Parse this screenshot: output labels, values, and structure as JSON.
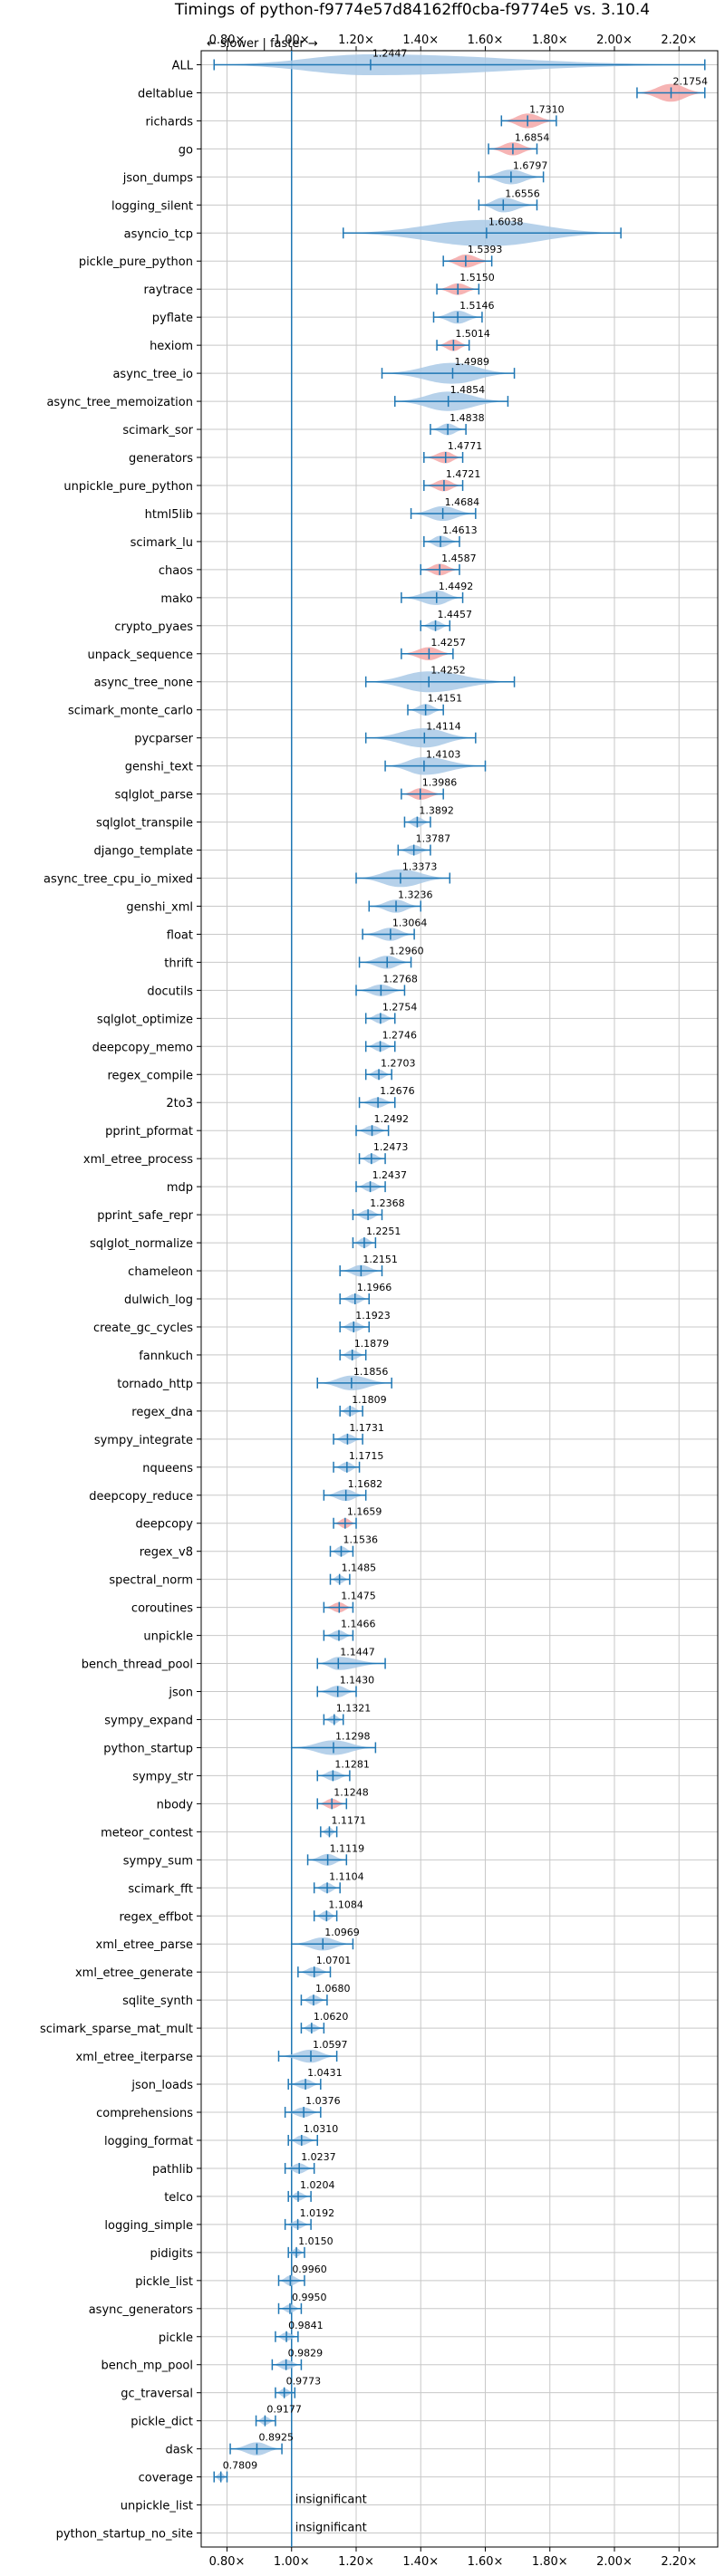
{
  "chart_data": {
    "type": "violin",
    "title": "Timings of python-f9774e57d84162ff0cba-f9774e5 vs. 3.10.4",
    "direction_hint": "← slower | faster →",
    "xlim": [
      0.72,
      2.32
    ],
    "xticks": [
      0.8,
      1.0,
      1.2,
      1.4,
      1.6,
      1.8,
      2.0,
      2.2
    ],
    "xtick_labels": [
      "0.80×",
      "1.00×",
      "1.20×",
      "1.40×",
      "1.60×",
      "1.80×",
      "2.00×",
      "2.20×"
    ],
    "reference_line": 1.0,
    "grid": true,
    "colors": {
      "normal": "#a9c9e6",
      "highlight": "#f4a7a7",
      "line": "#1f77b4",
      "grid": "#c8c8c8"
    },
    "insignificant_label": "insignificant",
    "benchmarks": [
      {
        "name": "ALL",
        "value": 1.2447,
        "label": "1.2447",
        "min": 0.76,
        "max": 2.28,
        "spread": 0.1,
        "color": "normal"
      },
      {
        "name": "deltablue",
        "value": 2.1754,
        "label": "2.1754",
        "min": 2.07,
        "max": 2.28,
        "spread": 0.08,
        "color": "highlight"
      },
      {
        "name": "richards",
        "value": 1.731,
        "label": "1.7310",
        "min": 1.65,
        "max": 1.82,
        "spread": 0.06,
        "color": "highlight"
      },
      {
        "name": "go",
        "value": 1.6854,
        "label": "1.6854",
        "min": 1.61,
        "max": 1.76,
        "spread": 0.05,
        "color": "highlight"
      },
      {
        "name": "json_dumps",
        "value": 1.6797,
        "label": "1.6797",
        "min": 1.58,
        "max": 1.78,
        "spread": 0.06,
        "color": "normal"
      },
      {
        "name": "logging_silent",
        "value": 1.6556,
        "label": "1.6556",
        "min": 1.58,
        "max": 1.76,
        "spread": 0.06,
        "color": "normal"
      },
      {
        "name": "asyncio_tcp",
        "value": 1.6038,
        "label": "1.6038",
        "min": 1.16,
        "max": 2.02,
        "spread": 0.24,
        "color": "normal"
      },
      {
        "name": "pickle_pure_python",
        "value": 1.5393,
        "label": "1.5393",
        "min": 1.47,
        "max": 1.62,
        "spread": 0.05,
        "color": "highlight"
      },
      {
        "name": "raytrace",
        "value": 1.515,
        "label": "1.5150",
        "min": 1.45,
        "max": 1.58,
        "spread": 0.04,
        "color": "highlight"
      },
      {
        "name": "pyflate",
        "value": 1.5146,
        "label": "1.5146",
        "min": 1.44,
        "max": 1.59,
        "spread": 0.05,
        "color": "normal"
      },
      {
        "name": "hexiom",
        "value": 1.5014,
        "label": "1.5014",
        "min": 1.45,
        "max": 1.55,
        "spread": 0.04,
        "color": "highlight"
      },
      {
        "name": "async_tree_io",
        "value": 1.4989,
        "label": "1.4989",
        "min": 1.28,
        "max": 1.69,
        "spread": 0.1,
        "color": "normal"
      },
      {
        "name": "async_tree_memoization",
        "value": 1.4854,
        "label": "1.4854",
        "min": 1.32,
        "max": 1.67,
        "spread": 0.09,
        "color": "normal"
      },
      {
        "name": "scimark_sor",
        "value": 1.4838,
        "label": "1.4838",
        "min": 1.43,
        "max": 1.54,
        "spread": 0.04,
        "color": "normal"
      },
      {
        "name": "generators",
        "value": 1.4771,
        "label": "1.4771",
        "min": 1.41,
        "max": 1.53,
        "spread": 0.04,
        "color": "highlight"
      },
      {
        "name": "unpickle_pure_python",
        "value": 1.4721,
        "label": "1.4721",
        "min": 1.41,
        "max": 1.53,
        "spread": 0.04,
        "color": "highlight"
      },
      {
        "name": "html5lib",
        "value": 1.4684,
        "label": "1.4684",
        "min": 1.37,
        "max": 1.57,
        "spread": 0.06,
        "color": "normal"
      },
      {
        "name": "scimark_lu",
        "value": 1.4613,
        "label": "1.4613",
        "min": 1.41,
        "max": 1.52,
        "spread": 0.04,
        "color": "normal"
      },
      {
        "name": "chaos",
        "value": 1.4587,
        "label": "1.4587",
        "min": 1.4,
        "max": 1.52,
        "spread": 0.04,
        "color": "highlight"
      },
      {
        "name": "mako",
        "value": 1.4492,
        "label": "1.4492",
        "min": 1.34,
        "max": 1.53,
        "spread": 0.06,
        "color": "normal"
      },
      {
        "name": "crypto_pyaes",
        "value": 1.4457,
        "label": "1.4457",
        "min": 1.4,
        "max": 1.49,
        "spread": 0.03,
        "color": "normal"
      },
      {
        "name": "unpack_sequence",
        "value": 1.4257,
        "label": "1.4257",
        "min": 1.34,
        "max": 1.5,
        "spread": 0.05,
        "color": "highlight"
      },
      {
        "name": "async_tree_none",
        "value": 1.4252,
        "label": "1.4252",
        "min": 1.23,
        "max": 1.69,
        "spread": 0.1,
        "color": "normal"
      },
      {
        "name": "scimark_monte_carlo",
        "value": 1.4151,
        "label": "1.4151",
        "min": 1.36,
        "max": 1.47,
        "spread": 0.04,
        "color": "normal"
      },
      {
        "name": "pycparser",
        "value": 1.4114,
        "label": "1.4114",
        "min": 1.23,
        "max": 1.57,
        "spread": 0.09,
        "color": "normal"
      },
      {
        "name": "genshi_text",
        "value": 1.4103,
        "label": "1.4103",
        "min": 1.29,
        "max": 1.6,
        "spread": 0.08,
        "color": "normal"
      },
      {
        "name": "sqlglot_parse",
        "value": 1.3986,
        "label": "1.3986",
        "min": 1.34,
        "max": 1.47,
        "spread": 0.04,
        "color": "highlight"
      },
      {
        "name": "sqlglot_transpile",
        "value": 1.3892,
        "label": "1.3892",
        "min": 1.35,
        "max": 1.43,
        "spread": 0.03,
        "color": "normal"
      },
      {
        "name": "django_template",
        "value": 1.3787,
        "label": "1.3787",
        "min": 1.33,
        "max": 1.43,
        "spread": 0.03,
        "color": "normal"
      },
      {
        "name": "async_tree_cpu_io_mixed",
        "value": 1.3373,
        "label": "1.3373",
        "min": 1.2,
        "max": 1.49,
        "spread": 0.08,
        "color": "normal"
      },
      {
        "name": "genshi_xml",
        "value": 1.3236,
        "label": "1.3236",
        "min": 1.24,
        "max": 1.4,
        "spread": 0.05,
        "color": "normal"
      },
      {
        "name": "float",
        "value": 1.3064,
        "label": "1.3064",
        "min": 1.22,
        "max": 1.38,
        "spread": 0.05,
        "color": "normal"
      },
      {
        "name": "thrift",
        "value": 1.296,
        "label": "1.2960",
        "min": 1.21,
        "max": 1.37,
        "spread": 0.05,
        "color": "normal"
      },
      {
        "name": "docutils",
        "value": 1.2768,
        "label": "1.2768",
        "min": 1.2,
        "max": 1.35,
        "spread": 0.04,
        "color": "normal"
      },
      {
        "name": "sqlglot_optimize",
        "value": 1.2754,
        "label": "1.2754",
        "min": 1.23,
        "max": 1.32,
        "spread": 0.03,
        "color": "normal"
      },
      {
        "name": "deepcopy_memo",
        "value": 1.2746,
        "label": "1.2746",
        "min": 1.23,
        "max": 1.32,
        "spread": 0.03,
        "color": "normal"
      },
      {
        "name": "regex_compile",
        "value": 1.2703,
        "label": "1.2703",
        "min": 1.23,
        "max": 1.31,
        "spread": 0.03,
        "color": "normal"
      },
      {
        "name": "2to3",
        "value": 1.2676,
        "label": "1.2676",
        "min": 1.21,
        "max": 1.32,
        "spread": 0.03,
        "color": "normal"
      },
      {
        "name": "pprint_pformat",
        "value": 1.2492,
        "label": "1.2492",
        "min": 1.2,
        "max": 1.3,
        "spread": 0.03,
        "color": "normal"
      },
      {
        "name": "xml_etree_process",
        "value": 1.2473,
        "label": "1.2473",
        "min": 1.21,
        "max": 1.29,
        "spread": 0.03,
        "color": "normal"
      },
      {
        "name": "mdp",
        "value": 1.2437,
        "label": "1.2437",
        "min": 1.2,
        "max": 1.29,
        "spread": 0.03,
        "color": "normal"
      },
      {
        "name": "pprint_safe_repr",
        "value": 1.2368,
        "label": "1.2368",
        "min": 1.19,
        "max": 1.28,
        "spread": 0.03,
        "color": "normal"
      },
      {
        "name": "sqlglot_normalize",
        "value": 1.2251,
        "label": "1.2251",
        "min": 1.19,
        "max": 1.26,
        "spread": 0.03,
        "color": "normal"
      },
      {
        "name": "chameleon",
        "value": 1.2151,
        "label": "1.2151",
        "min": 1.15,
        "max": 1.28,
        "spread": 0.04,
        "color": "normal"
      },
      {
        "name": "dulwich_log",
        "value": 1.1966,
        "label": "1.1966",
        "min": 1.15,
        "max": 1.24,
        "spread": 0.03,
        "color": "normal"
      },
      {
        "name": "create_gc_cycles",
        "value": 1.1923,
        "label": "1.1923",
        "min": 1.15,
        "max": 1.24,
        "spread": 0.03,
        "color": "normal"
      },
      {
        "name": "fannkuch",
        "value": 1.1879,
        "label": "1.1879",
        "min": 1.15,
        "max": 1.23,
        "spread": 0.03,
        "color": "normal"
      },
      {
        "name": "tornado_http",
        "value": 1.1856,
        "label": "1.1856",
        "min": 1.08,
        "max": 1.31,
        "spread": 0.06,
        "color": "normal"
      },
      {
        "name": "regex_dna",
        "value": 1.1809,
        "label": "1.1809",
        "min": 1.15,
        "max": 1.22,
        "spread": 0.03,
        "color": "normal"
      },
      {
        "name": "sympy_integrate",
        "value": 1.1731,
        "label": "1.1731",
        "min": 1.13,
        "max": 1.22,
        "spread": 0.03,
        "color": "normal"
      },
      {
        "name": "nqueens",
        "value": 1.1715,
        "label": "1.1715",
        "min": 1.13,
        "max": 1.21,
        "spread": 0.03,
        "color": "normal"
      },
      {
        "name": "deepcopy_reduce",
        "value": 1.1682,
        "label": "1.1682",
        "min": 1.1,
        "max": 1.23,
        "spread": 0.04,
        "color": "normal"
      },
      {
        "name": "deepcopy",
        "value": 1.1659,
        "label": "1.1659",
        "min": 1.13,
        "max": 1.2,
        "spread": 0.03,
        "color": "highlight"
      },
      {
        "name": "regex_v8",
        "value": 1.1536,
        "label": "1.1536",
        "min": 1.12,
        "max": 1.19,
        "spread": 0.03,
        "color": "normal"
      },
      {
        "name": "spectral_norm",
        "value": 1.1485,
        "label": "1.1485",
        "min": 1.12,
        "max": 1.18,
        "spread": 0.02,
        "color": "normal"
      },
      {
        "name": "coroutines",
        "value": 1.1475,
        "label": "1.1475",
        "min": 1.1,
        "max": 1.19,
        "spread": 0.03,
        "color": "highlight"
      },
      {
        "name": "unpickle",
        "value": 1.1466,
        "label": "1.1466",
        "min": 1.1,
        "max": 1.19,
        "spread": 0.03,
        "color": "normal"
      },
      {
        "name": "bench_thread_pool",
        "value": 1.1447,
        "label": "1.1447",
        "min": 1.08,
        "max": 1.29,
        "spread": 0.05,
        "color": "normal"
      },
      {
        "name": "json",
        "value": 1.143,
        "label": "1.1430",
        "min": 1.08,
        "max": 1.2,
        "spread": 0.04,
        "color": "normal"
      },
      {
        "name": "sympy_expand",
        "value": 1.1321,
        "label": "1.1321",
        "min": 1.1,
        "max": 1.16,
        "spread": 0.02,
        "color": "normal"
      },
      {
        "name": "python_startup",
        "value": 1.1298,
        "label": "1.1298",
        "min": 1.0,
        "max": 1.26,
        "spread": 0.06,
        "color": "normal"
      },
      {
        "name": "sympy_str",
        "value": 1.1281,
        "label": "1.1281",
        "min": 1.08,
        "max": 1.18,
        "spread": 0.03,
        "color": "normal"
      },
      {
        "name": "nbody",
        "value": 1.1248,
        "label": "1.1248",
        "min": 1.08,
        "max": 1.17,
        "spread": 0.03,
        "color": "highlight"
      },
      {
        "name": "meteor_contest",
        "value": 1.1171,
        "label": "1.1171",
        "min": 1.09,
        "max": 1.14,
        "spread": 0.02,
        "color": "normal"
      },
      {
        "name": "sympy_sum",
        "value": 1.1119,
        "label": "1.1119",
        "min": 1.05,
        "max": 1.17,
        "spread": 0.04,
        "color": "normal"
      },
      {
        "name": "scimark_fft",
        "value": 1.1104,
        "label": "1.1104",
        "min": 1.07,
        "max": 1.15,
        "spread": 0.03,
        "color": "normal"
      },
      {
        "name": "regex_effbot",
        "value": 1.1084,
        "label": "1.1084",
        "min": 1.07,
        "max": 1.14,
        "spread": 0.03,
        "color": "normal"
      },
      {
        "name": "xml_etree_parse",
        "value": 1.0969,
        "label": "1.0969",
        "min": 1.0,
        "max": 1.19,
        "spread": 0.05,
        "color": "normal"
      },
      {
        "name": "xml_etree_generate",
        "value": 1.0701,
        "label": "1.0701",
        "min": 1.02,
        "max": 1.12,
        "spread": 0.03,
        "color": "normal"
      },
      {
        "name": "sqlite_synth",
        "value": 1.068,
        "label": "1.0680",
        "min": 1.03,
        "max": 1.11,
        "spread": 0.03,
        "color": "normal"
      },
      {
        "name": "scimark_sparse_mat_mult",
        "value": 1.062,
        "label": "1.0620",
        "min": 1.03,
        "max": 1.1,
        "spread": 0.02,
        "color": "normal"
      },
      {
        "name": "xml_etree_iterparse",
        "value": 1.0597,
        "label": "1.0597",
        "min": 0.96,
        "max": 1.14,
        "spread": 0.05,
        "color": "normal"
      },
      {
        "name": "json_loads",
        "value": 1.0431,
        "label": "1.0431",
        "min": 0.99,
        "max": 1.09,
        "spread": 0.03,
        "color": "normal"
      },
      {
        "name": "comprehensions",
        "value": 1.0376,
        "label": "1.0376",
        "min": 0.98,
        "max": 1.09,
        "spread": 0.03,
        "color": "normal"
      },
      {
        "name": "logging_format",
        "value": 1.031,
        "label": "1.0310",
        "min": 0.99,
        "max": 1.08,
        "spread": 0.03,
        "color": "normal"
      },
      {
        "name": "pathlib",
        "value": 1.0237,
        "label": "1.0237",
        "min": 0.98,
        "max": 1.07,
        "spread": 0.03,
        "color": "normal"
      },
      {
        "name": "telco",
        "value": 1.0204,
        "label": "1.0204",
        "min": 0.99,
        "max": 1.06,
        "spread": 0.02,
        "color": "normal"
      },
      {
        "name": "logging_simple",
        "value": 1.0192,
        "label": "1.0192",
        "min": 0.98,
        "max": 1.06,
        "spread": 0.02,
        "color": "normal"
      },
      {
        "name": "pidigits",
        "value": 1.015,
        "label": "1.0150",
        "min": 0.99,
        "max": 1.04,
        "spread": 0.02,
        "color": "normal"
      },
      {
        "name": "pickle_list",
        "value": 0.996,
        "label": "0.9960",
        "min": 0.96,
        "max": 1.04,
        "spread": 0.03,
        "color": "normal"
      },
      {
        "name": "async_generators",
        "value": 0.995,
        "label": "0.9950",
        "min": 0.96,
        "max": 1.03,
        "spread": 0.02,
        "color": "normal"
      },
      {
        "name": "pickle",
        "value": 0.9841,
        "label": "0.9841",
        "min": 0.95,
        "max": 1.02,
        "spread": 0.02,
        "color": "normal"
      },
      {
        "name": "bench_mp_pool",
        "value": 0.9829,
        "label": "0.9829",
        "min": 0.94,
        "max": 1.03,
        "spread": 0.03,
        "color": "normal"
      },
      {
        "name": "gc_traversal",
        "value": 0.9773,
        "label": "0.9773",
        "min": 0.95,
        "max": 1.01,
        "spread": 0.02,
        "color": "normal"
      },
      {
        "name": "pickle_dict",
        "value": 0.9177,
        "label": "0.9177",
        "min": 0.89,
        "max": 0.95,
        "spread": 0.02,
        "color": "normal"
      },
      {
        "name": "dask",
        "value": 0.8925,
        "label": "0.8925",
        "min": 0.81,
        "max": 0.97,
        "spread": 0.05,
        "color": "normal"
      },
      {
        "name": "coverage",
        "value": 0.7809,
        "label": "0.7809",
        "min": 0.76,
        "max": 0.8,
        "spread": 0.02,
        "color": "normal"
      },
      {
        "name": "unpickle_list",
        "value": null,
        "label": "",
        "min": null,
        "max": null,
        "spread": 0,
        "color": "normal",
        "insignificant": true
      },
      {
        "name": "python_startup_no_site",
        "value": null,
        "label": "",
        "min": null,
        "max": null,
        "spread": 0,
        "color": "normal",
        "insignificant": true
      }
    ]
  }
}
